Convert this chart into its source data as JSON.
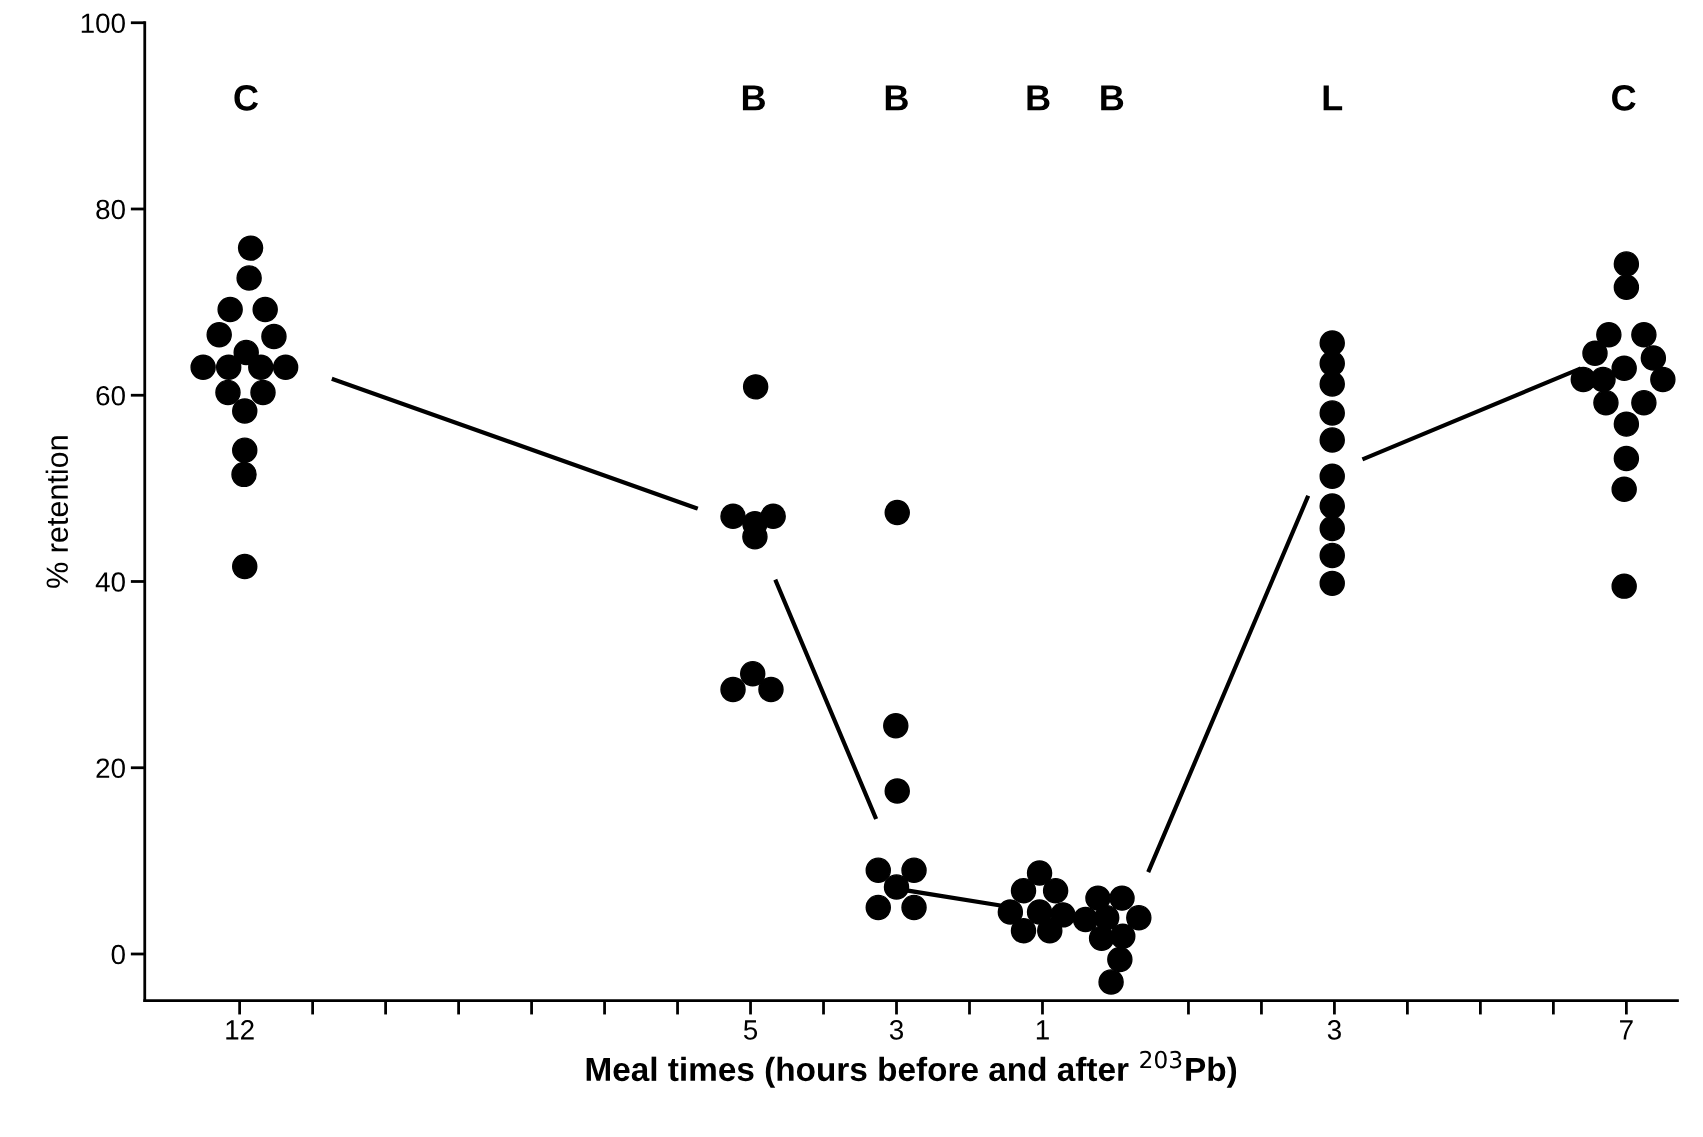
{
  "chart_data": {
    "type": "scatter",
    "xlabel": "Meal times (hours before and after $^{203}$Pb)",
    "ylabel": "% retention",
    "xlim": [
      -13.3,
      7.7
    ],
    "ylim": [
      -5,
      100
    ],
    "xticks": [
      {
        "value": -12,
        "label": "12"
      },
      {
        "value": -11,
        "label": null
      },
      {
        "value": -10,
        "label": null
      },
      {
        "value": -9,
        "label": null
      },
      {
        "value": -8,
        "label": null
      },
      {
        "value": -7,
        "label": null
      },
      {
        "value": -6,
        "label": null
      },
      {
        "value": -5,
        "label": "5"
      },
      {
        "value": -4,
        "label": null
      },
      {
        "value": -3,
        "label": "3"
      },
      {
        "value": -2,
        "label": null
      },
      {
        "value": -1,
        "label": "1"
      },
      {
        "value": 1,
        "label": null
      },
      {
        "value": 2,
        "label": null
      },
      {
        "value": 3,
        "label": "3"
      },
      {
        "value": 4,
        "label": null
      },
      {
        "value": 5,
        "label": null
      },
      {
        "value": 6,
        "label": null
      },
      {
        "value": 7,
        "label": "7"
      }
    ],
    "yticks": [
      0,
      20,
      40,
      60,
      80,
      100
    ],
    "grid": false,
    "legend": false,
    "marker": "circle",
    "series": [
      {
        "color": "#000000",
        "x": [
          -11.85,
          -11.87,
          -12.13,
          -11.65,
          -12.28,
          -11.53,
          -11.91,
          -12.5,
          -12.15,
          -11.71,
          -11.37,
          -12.16,
          -11.68,
          -11.93,
          -11.93,
          -11.94,
          -11.93,
          -4.93,
          -4.94,
          -5.24,
          -4.69,
          -4.94,
          -5.24,
          -4.97,
          -4.72,
          -2.99,
          -3.01,
          -2.99,
          -3.25,
          -2.76,
          -3.0,
          -3.25,
          -2.76,
          -1.04,
          -1.26,
          -0.82,
          -1.04,
          -1.44,
          -0.72,
          -1.26,
          -0.9,
          -0.24,
          0.09,
          -0.41,
          -0.12,
          0.32,
          -0.19,
          0.1,
          0.06,
          -0.06,
          2.97,
          2.97,
          2.97,
          2.97,
          2.97,
          2.97,
          2.97,
          2.97,
          2.97,
          2.97,
          7.0,
          7.0,
          6.76,
          7.24,
          6.57,
          7.37,
          6.97,
          6.41,
          6.68,
          7.5,
          6.72,
          7.24,
          7.0,
          7.0,
          6.97,
          6.97
        ],
        "values": [
          75.8,
          72.6,
          69.2,
          69.2,
          66.5,
          66.3,
          64.6,
          63.0,
          63.0,
          63.0,
          63.0,
          60.3,
          60.3,
          58.3,
          54.1,
          51.5,
          41.6,
          60.9,
          46.2,
          47.0,
          47.0,
          44.8,
          28.4,
          30.1,
          28.4,
          47.4,
          24.5,
          17.5,
          9.0,
          9.0,
          7.2,
          5.0,
          5.0,
          8.7,
          6.8,
          6.8,
          4.5,
          4.5,
          4.2,
          2.5,
          2.5,
          6.0,
          6.0,
          3.7,
          3.9,
          3.9,
          1.7,
          1.9,
          -0.6,
          -3.0,
          65.6,
          63.4,
          61.2,
          58.1,
          55.2,
          51.3,
          48.1,
          45.7,
          42.8,
          39.8,
          74.1,
          71.6,
          66.5,
          66.5,
          64.5,
          64.0,
          62.9,
          61.7,
          61.7,
          61.7,
          59.2,
          59.2,
          56.9,
          53.2,
          49.9,
          39.5
        ]
      },
      {
        "type": "line",
        "color": "#000000",
        "marker": "none",
        "x": [
          -10.71,
          -5.75,
          -5.2,
          -4.65,
          -3.29,
          -3.05,
          -2.84,
          -1.49,
          -0.5,
          0.46,
          2.63,
          3.0,
          3.41,
          6.35
        ],
        "values": [
          61.7,
          47.9,
          null,
          40.0,
          14.7,
          null,
          6.8,
          5.1,
          null,
          9.0,
          49.0,
          null,
          53.2,
          62.8
        ]
      }
    ],
    "annotations": [
      "C",
      "B",
      "B",
      "B",
      "B",
      "L",
      "C"
    ]
  }
}
